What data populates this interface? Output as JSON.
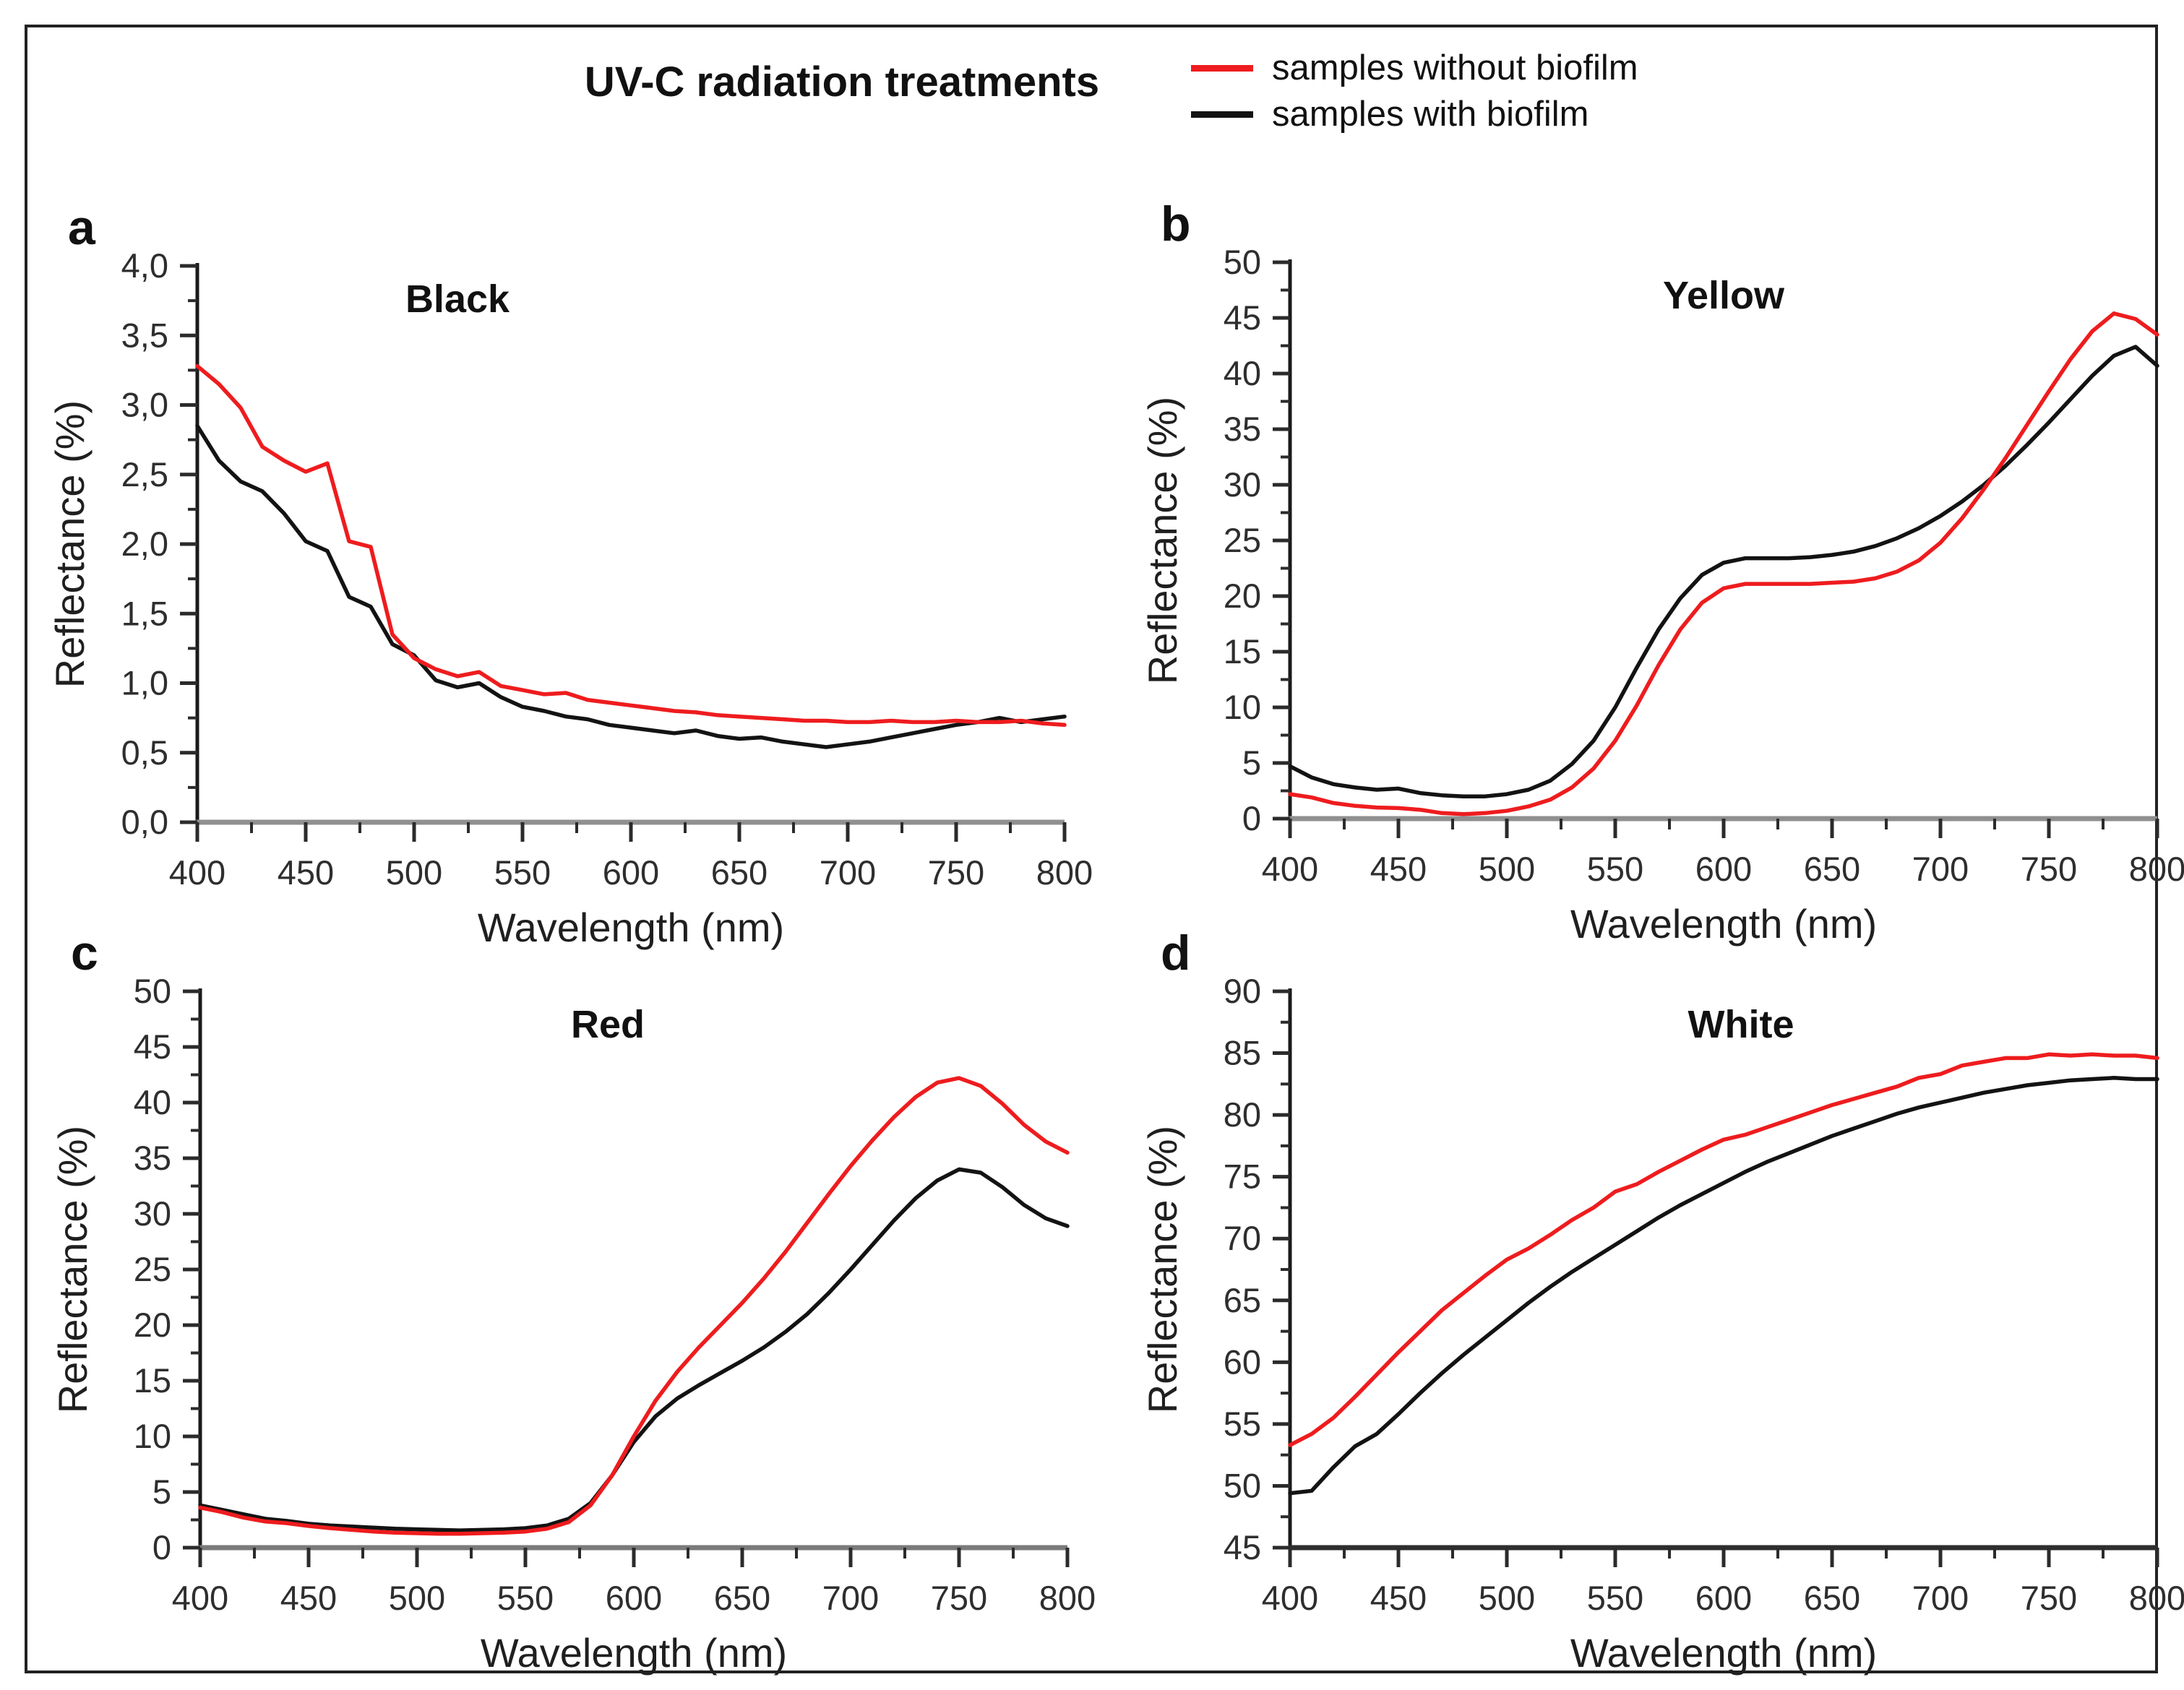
{
  "figure": {
    "title": "UV-C radiation treatments",
    "legend": {
      "items": [
        {
          "label": "samples without biofilm",
          "color_key": "without_biofilm"
        },
        {
          "label": "samples with biofilm",
          "color_key": "with_biofilm"
        }
      ]
    },
    "colors": {
      "without_biofilm": "#ee1c1e",
      "with_biofilm": "#131313",
      "axis": "#1a1a1a",
      "tick": "#2b2b2b",
      "tick_text": "#2e2e2e",
      "border": "#222222"
    }
  },
  "chart_data": [
    {
      "panel_letter": "a",
      "title": "Black",
      "type": "line",
      "xlabel": "Wavelength (nm)",
      "ylabel": "Reflectance (%)",
      "xlim": [
        400,
        800
      ],
      "ylim": [
        0,
        4
      ],
      "x_ticks": [
        400,
        450,
        500,
        550,
        600,
        650,
        700,
        750,
        800
      ],
      "x_minor_step": 25,
      "y_ticks": [
        {
          "value": 0.0,
          "label": "0,0"
        },
        {
          "value": 0.5,
          "label": "0,5"
        },
        {
          "value": 1.0,
          "label": "1,0"
        },
        {
          "value": 1.5,
          "label": "1,5"
        },
        {
          "value": 2.0,
          "label": "2,0"
        },
        {
          "value": 2.5,
          "label": "2,5"
        },
        {
          "value": 3.0,
          "label": "3,0"
        },
        {
          "value": 3.5,
          "label": "3,5"
        },
        {
          "value": 4.0,
          "label": "4,0"
        }
      ],
      "y_minor_step": 0.25,
      "grid": false,
      "legend_position": "shared-top",
      "title_x_frac": 0.3,
      "baseline_color": "#909090",
      "x_start": 400,
      "x_step": 10,
      "series": [
        {
          "name": "samples without biofilm",
          "color_key": "without_biofilm",
          "values": [
            3.28,
            3.15,
            2.98,
            2.7,
            2.6,
            2.52,
            2.58,
            2.02,
            1.98,
            1.35,
            1.18,
            1.1,
            1.05,
            1.08,
            0.98,
            0.95,
            0.92,
            0.93,
            0.88,
            0.86,
            0.84,
            0.82,
            0.8,
            0.79,
            0.77,
            0.76,
            0.75,
            0.74,
            0.73,
            0.73,
            0.72,
            0.72,
            0.73,
            0.72,
            0.72,
            0.73,
            0.72,
            0.72,
            0.73,
            0.71,
            0.7
          ]
        },
        {
          "name": "samples with biofilm",
          "color_key": "with_biofilm",
          "values": [
            2.85,
            2.6,
            2.45,
            2.38,
            2.22,
            2.02,
            1.95,
            1.62,
            1.55,
            1.28,
            1.2,
            1.02,
            0.97,
            1.0,
            0.9,
            0.83,
            0.8,
            0.76,
            0.74,
            0.7,
            0.68,
            0.66,
            0.64,
            0.66,
            0.62,
            0.6,
            0.61,
            0.58,
            0.56,
            0.54,
            0.56,
            0.58,
            0.61,
            0.64,
            0.67,
            0.7,
            0.72,
            0.75,
            0.72,
            0.74,
            0.76
          ]
        }
      ]
    },
    {
      "panel_letter": "b",
      "title": "Yellow",
      "type": "line",
      "xlabel": "Wavelength (nm)",
      "ylabel": "Reflectance (%)",
      "xlim": [
        400,
        800
      ],
      "ylim": [
        0,
        50
      ],
      "x_ticks": [
        400,
        450,
        500,
        550,
        600,
        650,
        700,
        750,
        800
      ],
      "x_minor_step": 25,
      "y_ticks": [
        {
          "value": 0,
          "label": "0"
        },
        {
          "value": 5,
          "label": "5"
        },
        {
          "value": 10,
          "label": "10"
        },
        {
          "value": 15,
          "label": "15"
        },
        {
          "value": 20,
          "label": "20"
        },
        {
          "value": 25,
          "label": "25"
        },
        {
          "value": 30,
          "label": "30"
        },
        {
          "value": 35,
          "label": "35"
        },
        {
          "value": 40,
          "label": "40"
        },
        {
          "value": 45,
          "label": "45"
        },
        {
          "value": 50,
          "label": "50"
        }
      ],
      "y_minor_step": 2.5,
      "grid": false,
      "legend_position": "shared-top",
      "title_x_frac": 0.5,
      "baseline_color": "#8f8f8f",
      "x_start": 400,
      "x_step": 10,
      "series": [
        {
          "name": "samples without biofilm",
          "color_key": "without_biofilm",
          "values": [
            2.2,
            1.9,
            1.4,
            1.15,
            1.0,
            0.95,
            0.8,
            0.5,
            0.4,
            0.5,
            0.7,
            1.1,
            1.7,
            2.8,
            4.5,
            7.0,
            10.2,
            13.8,
            17.0,
            19.4,
            20.7,
            21.1,
            21.1,
            21.1,
            21.1,
            21.2,
            21.3,
            21.6,
            22.2,
            23.2,
            24.8,
            27.0,
            29.6,
            32.4,
            35.4,
            38.4,
            41.3,
            43.8,
            45.4,
            44.9,
            43.5
          ]
        },
        {
          "name": "samples with biofilm",
          "color_key": "with_biofilm",
          "values": [
            4.7,
            3.7,
            3.1,
            2.8,
            2.6,
            2.7,
            2.3,
            2.1,
            2.0,
            2.0,
            2.2,
            2.6,
            3.4,
            4.9,
            7.0,
            10.0,
            13.6,
            17.0,
            19.8,
            21.9,
            23.0,
            23.4,
            23.4,
            23.4,
            23.5,
            23.7,
            24.0,
            24.5,
            25.2,
            26.1,
            27.2,
            28.5,
            30.0,
            31.7,
            33.6,
            35.6,
            37.7,
            39.8,
            41.6,
            42.4,
            40.7
          ]
        }
      ]
    },
    {
      "panel_letter": "c",
      "title": "Red",
      "type": "line",
      "xlabel": "Wavelength (nm)",
      "ylabel": "Reflectance (%)",
      "xlim": [
        400,
        800
      ],
      "ylim": [
        0,
        50
      ],
      "x_ticks": [
        400,
        450,
        500,
        550,
        600,
        650,
        700,
        750,
        800
      ],
      "x_minor_step": 25,
      "y_ticks": [
        {
          "value": 0,
          "label": "0"
        },
        {
          "value": 5,
          "label": "5"
        },
        {
          "value": 10,
          "label": "10"
        },
        {
          "value": 15,
          "label": "15"
        },
        {
          "value": 20,
          "label": "20"
        },
        {
          "value": 25,
          "label": "25"
        },
        {
          "value": 30,
          "label": "30"
        },
        {
          "value": 35,
          "label": "35"
        },
        {
          "value": 40,
          "label": "40"
        },
        {
          "value": 45,
          "label": "45"
        },
        {
          "value": 50,
          "label": "50"
        }
      ],
      "y_minor_step": 2.5,
      "grid": false,
      "legend_position": "shared-top",
      "title_x_frac": 0.47,
      "baseline_color": "#7a7a7a",
      "x_start": 400,
      "x_step": 10,
      "series": [
        {
          "name": "samples without biofilm",
          "color_key": "without_biofilm",
          "values": [
            3.6,
            3.2,
            2.7,
            2.35,
            2.2,
            1.95,
            1.75,
            1.6,
            1.45,
            1.35,
            1.3,
            1.25,
            1.25,
            1.3,
            1.35,
            1.45,
            1.7,
            2.3,
            3.8,
            6.5,
            10.0,
            13.2,
            15.8,
            18.0,
            20.0,
            22.0,
            24.2,
            26.6,
            29.2,
            31.8,
            34.3,
            36.6,
            38.7,
            40.5,
            41.8,
            42.2,
            41.5,
            39.9,
            38.0,
            36.5,
            35.5
          ]
        },
        {
          "name": "samples with biofilm",
          "color_key": "with_biofilm",
          "values": [
            3.8,
            3.4,
            3.0,
            2.6,
            2.4,
            2.15,
            2.0,
            1.9,
            1.8,
            1.7,
            1.65,
            1.6,
            1.55,
            1.6,
            1.65,
            1.75,
            2.0,
            2.6,
            4.0,
            6.5,
            9.5,
            11.8,
            13.4,
            14.6,
            15.7,
            16.8,
            18.0,
            19.4,
            21.0,
            22.9,
            25.0,
            27.2,
            29.4,
            31.4,
            33.0,
            34.0,
            33.7,
            32.4,
            30.8,
            29.6,
            28.9
          ]
        }
      ]
    },
    {
      "panel_letter": "d",
      "title": "White",
      "type": "line",
      "xlabel": "Wavelength (nm)",
      "ylabel": "Reflectance (%)",
      "xlim": [
        400,
        800
      ],
      "ylim": [
        45,
        90
      ],
      "x_ticks": [
        400,
        450,
        500,
        550,
        600,
        650,
        700,
        750,
        800
      ],
      "x_minor_step": 25,
      "y_ticks": [
        {
          "value": 45,
          "label": "45"
        },
        {
          "value": 50,
          "label": "50"
        },
        {
          "value": 55,
          "label": "55"
        },
        {
          "value": 60,
          "label": "60"
        },
        {
          "value": 65,
          "label": "65"
        },
        {
          "value": 70,
          "label": "70"
        },
        {
          "value": 75,
          "label": "75"
        },
        {
          "value": 80,
          "label": "80"
        },
        {
          "value": 85,
          "label": "85"
        },
        {
          "value": 90,
          "label": "90"
        }
      ],
      "y_minor_step": 2.5,
      "grid": false,
      "legend_position": "shared-top",
      "title_x_frac": 0.52,
      "baseline_color": "#2e2e2e",
      "x_start": 400,
      "x_step": 10,
      "series": [
        {
          "name": "samples without biofilm",
          "color_key": "without_biofilm",
          "values": [
            53.3,
            54.2,
            55.5,
            57.2,
            59.0,
            60.8,
            62.5,
            64.2,
            65.6,
            67.0,
            68.3,
            69.2,
            70.3,
            71.5,
            72.5,
            73.8,
            74.4,
            75.4,
            76.3,
            77.2,
            78.0,
            78.4,
            79.0,
            79.6,
            80.2,
            80.8,
            81.3,
            81.8,
            82.3,
            83.0,
            83.3,
            84.0,
            84.3,
            84.6,
            84.6,
            84.9,
            84.8,
            84.9,
            84.8,
            84.8,
            84.6
          ]
        },
        {
          "name": "samples with biofilm",
          "color_key": "with_biofilm",
          "values": [
            49.4,
            49.6,
            51.5,
            53.2,
            54.2,
            55.8,
            57.5,
            59.1,
            60.6,
            62.0,
            63.4,
            64.8,
            66.1,
            67.3,
            68.4,
            69.5,
            70.6,
            71.7,
            72.7,
            73.6,
            74.5,
            75.4,
            76.2,
            76.9,
            77.6,
            78.3,
            78.9,
            79.5,
            80.1,
            80.6,
            81.0,
            81.4,
            81.8,
            82.1,
            82.4,
            82.6,
            82.8,
            82.9,
            83.0,
            82.9,
            82.9
          ]
        }
      ]
    }
  ]
}
